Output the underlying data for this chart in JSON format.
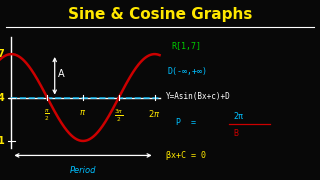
{
  "title": "Sine & Cosine Graphs",
  "title_color": "#FFE800",
  "bg_color": "#080808",
  "curve_color": "#CC0000",
  "dashed_color": "#00BFFF",
  "axis_color": "#FFFFFF",
  "y_label_color": "#FFE800",
  "period_color": "#00BFFF",
  "annotation_arrow_color": "#FFFFFF",
  "right_texts": [
    {
      "text": "R[1,7]",
      "color": "#00CC00"
    },
    {
      "text": "D(-∞,+∞)",
      "color": "#00BFFF"
    },
    {
      "text": "Y=Asin(Bx+c)+D",
      "color": "#FFFFFF"
    },
    {
      "text": "P  =   2π",
      "color": "#00BFFF"
    },
    {
      "text": "βx+C = 0",
      "color": "#FFE800"
    }
  ]
}
